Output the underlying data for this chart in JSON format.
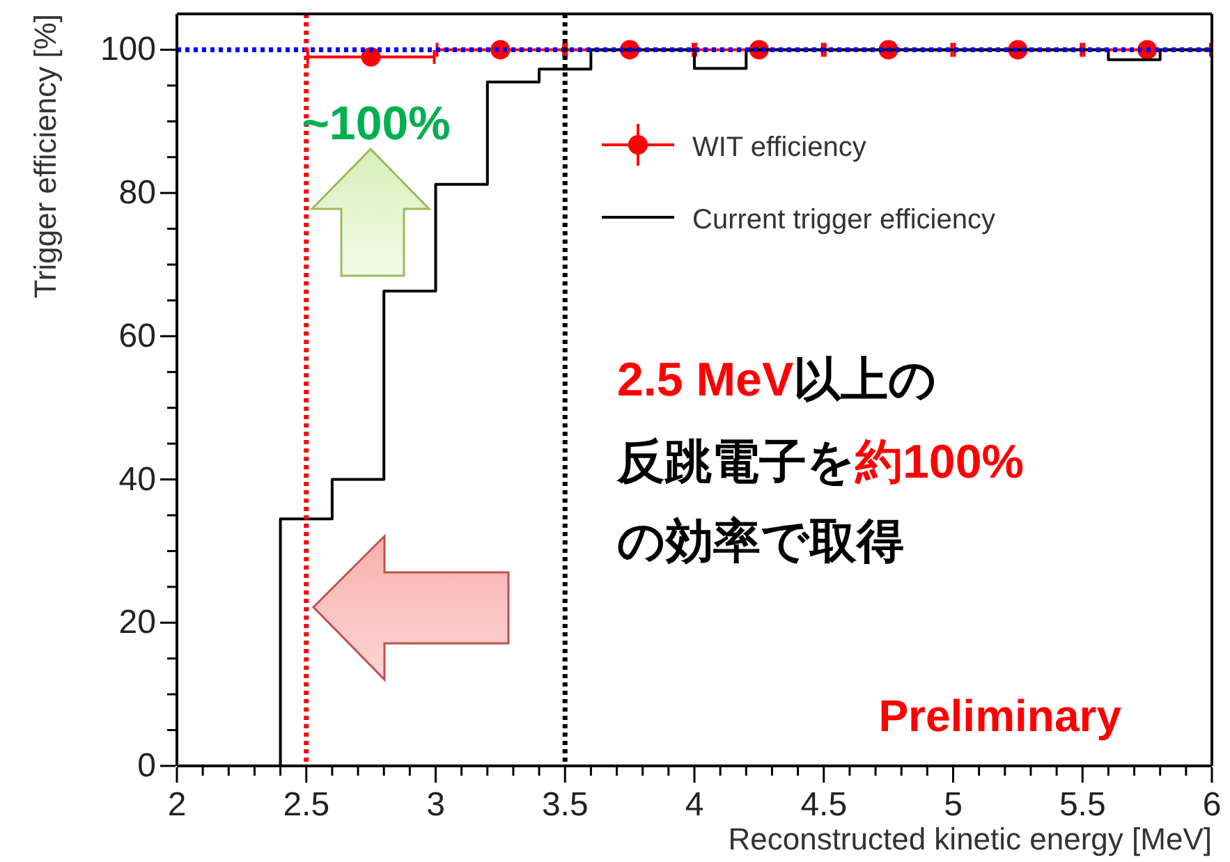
{
  "chart_data": {
    "type": "scatter",
    "xlabel": "Reconstructed kinetic energy [MeV]",
    "ylabel": "Trigger efficiency [%]",
    "xlim": [
      2,
      6
    ],
    "ylim": [
      0,
      105
    ],
    "xticks": [
      2,
      {
        "value": 2.1,
        "label": null
      },
      {
        "value": 2.2,
        "label": null
      },
      {
        "value": 2.3,
        "label": null
      },
      {
        "value": 2.4,
        "label": null
      },
      2.5,
      {
        "value": 2.6,
        "label": null
      },
      {
        "value": 2.7,
        "label": null
      },
      {
        "value": 2.8,
        "label": null
      },
      {
        "value": 2.9,
        "label": null
      },
      3,
      {
        "value": 3.1,
        "label": null
      },
      {
        "value": 3.2,
        "label": null
      },
      {
        "value": 3.3,
        "label": null
      },
      {
        "value": 3.4,
        "label": null
      },
      3.5,
      {
        "value": 3.6,
        "label": null
      },
      {
        "value": 3.7,
        "label": null
      },
      {
        "value": 3.8,
        "label": null
      },
      {
        "value": 3.9,
        "label": null
      },
      4,
      {
        "value": 4.1,
        "label": null
      },
      {
        "value": 4.2,
        "label": null
      },
      {
        "value": 4.3,
        "label": null
      },
      {
        "value": 4.4,
        "label": null
      },
      4.5,
      {
        "value": 4.6,
        "label": null
      },
      {
        "value": 4.7,
        "label": null
      },
      {
        "value": 4.8,
        "label": null
      },
      {
        "value": 4.9,
        "label": null
      },
      5,
      {
        "value": 5.1,
        "label": null
      },
      {
        "value": 5.2,
        "label": null
      },
      {
        "value": 5.3,
        "label": null
      },
      {
        "value": 5.4,
        "label": null
      },
      5.5,
      {
        "value": 5.6,
        "label": null
      },
      {
        "value": 5.7,
        "label": null
      },
      {
        "value": 5.8,
        "label": null
      },
      {
        "value": 5.9,
        "label": null
      },
      6
    ],
    "yticks": [
      0,
      {
        "value": 5,
        "label": null
      },
      {
        "value": 10,
        "label": null
      },
      {
        "value": 15,
        "label": null
      },
      20,
      {
        "value": 25,
        "label": null
      },
      {
        "value": 30,
        "label": null
      },
      {
        "value": 35,
        "label": null
      },
      40,
      {
        "value": 45,
        "label": null
      },
      {
        "value": 50,
        "label": null
      },
      {
        "value": 55,
        "label": null
      },
      60,
      {
        "value": 65,
        "label": null
      },
      {
        "value": 70,
        "label": null
      },
      {
        "value": 75,
        "label": null
      },
      80,
      {
        "value": 85,
        "label": null
      },
      {
        "value": 90,
        "label": null
      },
      {
        "value": 95,
        "label": null
      },
      100
    ],
    "series": [
      {
        "name": "WIT efficiency",
        "color": "#ff0000",
        "marker": "circle",
        "x": [
          2.75,
          3.25,
          3.75,
          4.25,
          4.75,
          5.25,
          5.75
        ],
        "values": [
          99,
          100,
          100,
          100,
          100,
          100,
          100
        ],
        "xerrors": [
          0.25,
          0.25,
          0.25,
          0.25,
          0.25,
          0.25,
          0.25
        ]
      },
      {
        "name": "Current trigger efficiency",
        "type": "histogram",
        "color": "#000000",
        "bins": [
          2.0,
          2.2,
          2.4,
          2.6,
          2.8,
          3.0,
          3.2,
          3.4,
          3.6,
          3.8,
          4.0,
          4.2,
          4.4,
          4.6,
          4.8,
          5.0,
          5.2,
          5.4,
          5.6,
          5.8,
          6.0
        ],
        "values": [
          0,
          0,
          34.5,
          40,
          66.3,
          81.2,
          95.5,
          97.3,
          100,
          100,
          97.4,
          100,
          100,
          100,
          100,
          100,
          100,
          100,
          98.6,
          100
        ]
      }
    ],
    "ref_lines": [
      {
        "axis": "y",
        "value": 100,
        "color": "#0000ff",
        "line_style": "dotted"
      },
      {
        "axis": "x",
        "value": 2.5,
        "color": "#ff0000",
        "line_style": "dotted"
      },
      {
        "axis": "x",
        "value": 3.5,
        "color": "#000000",
        "line_style": "dotted"
      }
    ],
    "annotations": [
      "~100%",
      "2.5 MeV以上の",
      "反跳電子を約100%",
      "の効率で取得",
      "Preliminary"
    ],
    "legend": "top right",
    "grid": false
  }
}
